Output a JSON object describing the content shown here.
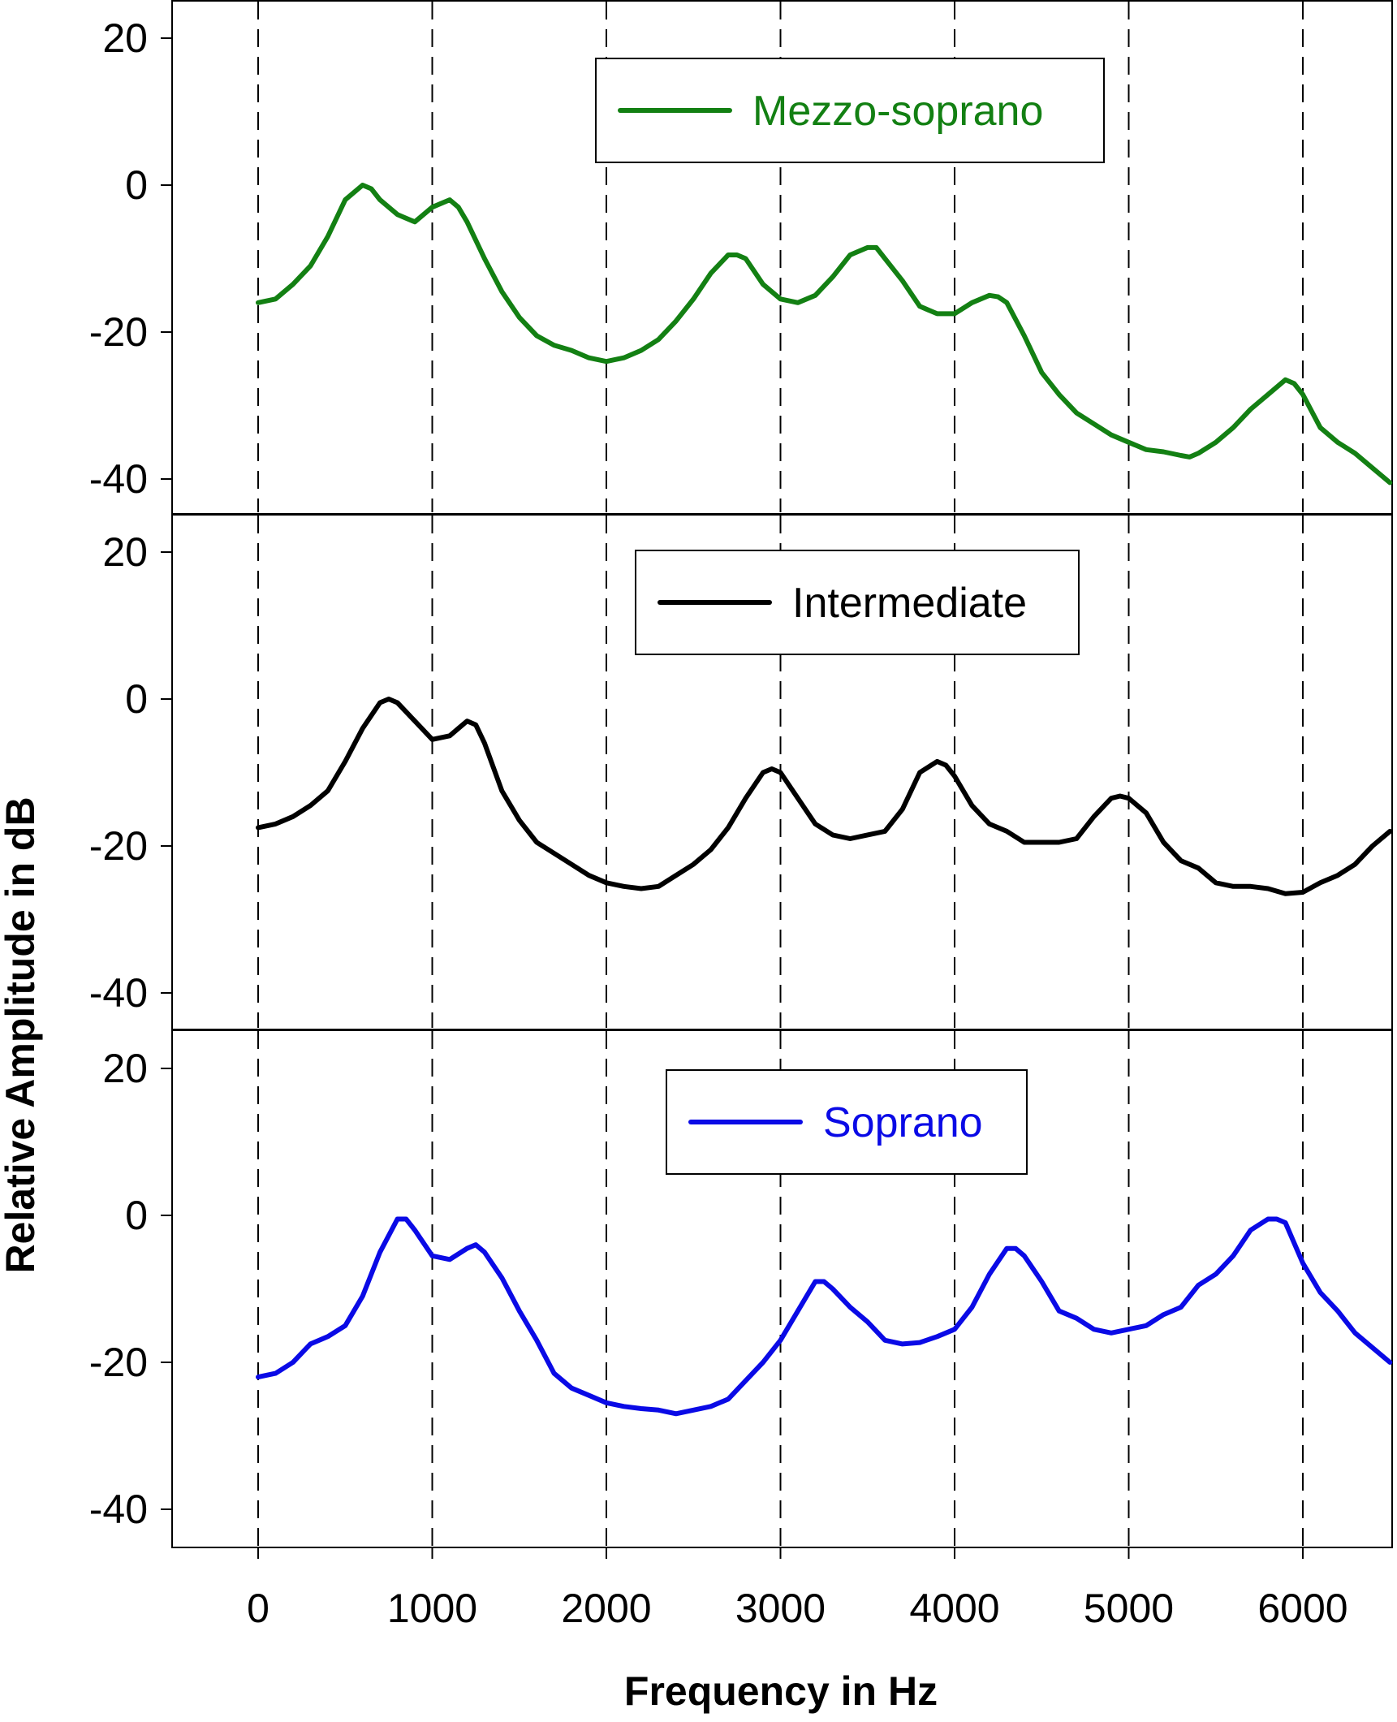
{
  "chart_data": {
    "type": "line",
    "xlabel": "Frequency in Hz",
    "ylabel": "Relative Amplitude in dB",
    "xlim": [
      -500,
      6500
    ],
    "xticks": [
      0,
      1000,
      2000,
      3000,
      4000,
      5000,
      6000
    ],
    "xtick_labels": [
      "0",
      "1000",
      "2000",
      "3000",
      "4000",
      "5000",
      "6000"
    ],
    "vertical_dashed_gridlines_at": [
      0,
      1000,
      2000,
      3000,
      4000,
      5000,
      6000
    ],
    "legend_placement": "top-center of each panel",
    "panels": [
      {
        "ylim": [
          -45,
          25
        ],
        "yticks": [
          20,
          0,
          -20,
          -40
        ],
        "ytick_labels": [
          "20",
          "0",
          "-20",
          "-40"
        ],
        "series": [
          {
            "name": "Mezzo-soprano",
            "color": "#138013",
            "x": [
              0,
              100,
              200,
              300,
              400,
              500,
              600,
              650,
              700,
              800,
              900,
              1000,
              1100,
              1150,
              1200,
              1300,
              1400,
              1500,
              1600,
              1700,
              1800,
              1900,
              2000,
              2100,
              2200,
              2300,
              2400,
              2500,
              2600,
              2700,
              2750,
              2800,
              2900,
              3000,
              3100,
              3200,
              3300,
              3400,
              3500,
              3550,
              3600,
              3700,
              3800,
              3900,
              4000,
              4100,
              4200,
              4250,
              4300,
              4400,
              4500,
              4600,
              4700,
              4800,
              4900,
              5000,
              5100,
              5200,
              5300,
              5350,
              5400,
              5500,
              5600,
              5700,
              5800,
              5900,
              5950,
              6000,
              6100,
              6200,
              6300,
              6400,
              6500
            ],
            "y": [
              -16,
              -15.5,
              -13.5,
              -11,
              -7,
              -2,
              0,
              -0.5,
              -2,
              -4,
              -5,
              -3,
              -2,
              -3,
              -5,
              -10,
              -14.5,
              -18,
              -20.5,
              -21.8,
              -22.5,
              -23.5,
              -24,
              -23.5,
              -22.5,
              -21,
              -18.5,
              -15.5,
              -12,
              -9.5,
              -9.5,
              -10,
              -13.5,
              -15.5,
              -16,
              -15,
              -12.5,
              -9.5,
              -8.5,
              -8.5,
              -10,
              -13,
              -16.5,
              -17.5,
              -17.5,
              -16,
              -15,
              -15.2,
              -16,
              -20.5,
              -25.5,
              -28.5,
              -31,
              -32.5,
              -34,
              -35,
              -36,
              -36.3,
              -36.8,
              -37,
              -36.5,
              -35,
              -33,
              -30.5,
              -28.5,
              -26.5,
              -27,
              -28.5,
              -33,
              -35,
              -36.5,
              -38.5,
              -40.5
            ]
          }
        ]
      },
      {
        "ylim": [
          -45,
          25
        ],
        "yticks": [
          20,
          0,
          -20,
          -40
        ],
        "ytick_labels": [
          "20",
          "0",
          "-20",
          "-40"
        ],
        "series": [
          {
            "name": "Intermediate",
            "color": "#000000",
            "x": [
              0,
              100,
              200,
              300,
              400,
              500,
              600,
              700,
              750,
              800,
              900,
              1000,
              1100,
              1150,
              1200,
              1250,
              1300,
              1400,
              1500,
              1600,
              1700,
              1800,
              1900,
              2000,
              2100,
              2200,
              2300,
              2400,
              2500,
              2600,
              2700,
              2800,
              2900,
              2950,
              3000,
              3100,
              3200,
              3300,
              3400,
              3500,
              3600,
              3700,
              3800,
              3900,
              3950,
              4000,
              4100,
              4200,
              4300,
              4400,
              4500,
              4600,
              4700,
              4800,
              4900,
              4950,
              5000,
              5100,
              5200,
              5300,
              5400,
              5500,
              5600,
              5700,
              5800,
              5900,
              6000,
              6100,
              6200,
              6300,
              6400,
              6500
            ],
            "y": [
              -17.5,
              -17,
              -16,
              -14.5,
              -12.5,
              -8.5,
              -4,
              -0.5,
              0,
              -0.5,
              -3,
              -5.5,
              -5,
              -4,
              -3,
              -3.5,
              -6,
              -12.5,
              -16.5,
              -19.5,
              -21,
              -22.5,
              -24,
              -25,
              -25.5,
              -25.8,
              -25.5,
              -24,
              -22.5,
              -20.5,
              -17.5,
              -13.5,
              -10,
              -9.5,
              -10,
              -13.5,
              -17,
              -18.5,
              -19,
              -18.5,
              -18,
              -15,
              -10,
              -8.5,
              -9,
              -10.5,
              -14.5,
              -17,
              -18,
              -19.5,
              -19.5,
              -19.5,
              -19,
              -16,
              -13.5,
              -13.2,
              -13.5,
              -15.5,
              -19.5,
              -22,
              -23,
              -25,
              -25.5,
              -25.5,
              -25.8,
              -26.5,
              -26.3,
              -25,
              -24,
              -22.5,
              -20,
              -18
            ]
          }
        ]
      },
      {
        "ylim": [
          -45,
          25
        ],
        "yticks": [
          20,
          0,
          -20,
          -40
        ],
        "ytick_labels": [
          "20",
          "0",
          "-20",
          "-40"
        ],
        "series": [
          {
            "name": "Soprano",
            "color": "#0a0ae6",
            "x": [
              0,
              100,
              200,
              300,
              400,
              500,
              600,
              700,
              800,
              850,
              900,
              1000,
              1100,
              1200,
              1250,
              1300,
              1400,
              1500,
              1600,
              1700,
              1800,
              1900,
              2000,
              2100,
              2200,
              2300,
              2400,
              2500,
              2600,
              2700,
              2800,
              2900,
              3000,
              3100,
              3200,
              3250,
              3300,
              3400,
              3500,
              3600,
              3700,
              3800,
              3900,
              4000,
              4100,
              4200,
              4300,
              4350,
              4400,
              4500,
              4600,
              4700,
              4800,
              4900,
              5000,
              5100,
              5200,
              5300,
              5400,
              5500,
              5600,
              5700,
              5800,
              5850,
              5900,
              6000,
              6100,
              6200,
              6300,
              6400,
              6500
            ],
            "y": [
              -22,
              -21.5,
              -20,
              -17.5,
              -16.5,
              -15,
              -11,
              -5,
              -0.5,
              -0.5,
              -2,
              -5.5,
              -6,
              -4.5,
              -4,
              -5,
              -8.5,
              -13,
              -17,
              -21.5,
              -23.5,
              -24.5,
              -25.5,
              -26,
              -26.3,
              -26.5,
              -27,
              -26.5,
              -26,
              -25,
              -22.5,
              -20,
              -17,
              -13,
              -9,
              -9,
              -10,
              -12.5,
              -14.5,
              -17,
              -17.5,
              -17.3,
              -16.5,
              -15.5,
              -12.5,
              -8,
              -4.5,
              -4.5,
              -5.5,
              -9,
              -13,
              -14,
              -15.5,
              -16,
              -15.5,
              -15,
              -13.5,
              -12.5,
              -9.5,
              -8,
              -5.5,
              -2,
              -0.5,
              -0.5,
              -1,
              -6.5,
              -10.5,
              -13,
              -16,
              -18,
              -20
            ]
          }
        ]
      }
    ]
  }
}
